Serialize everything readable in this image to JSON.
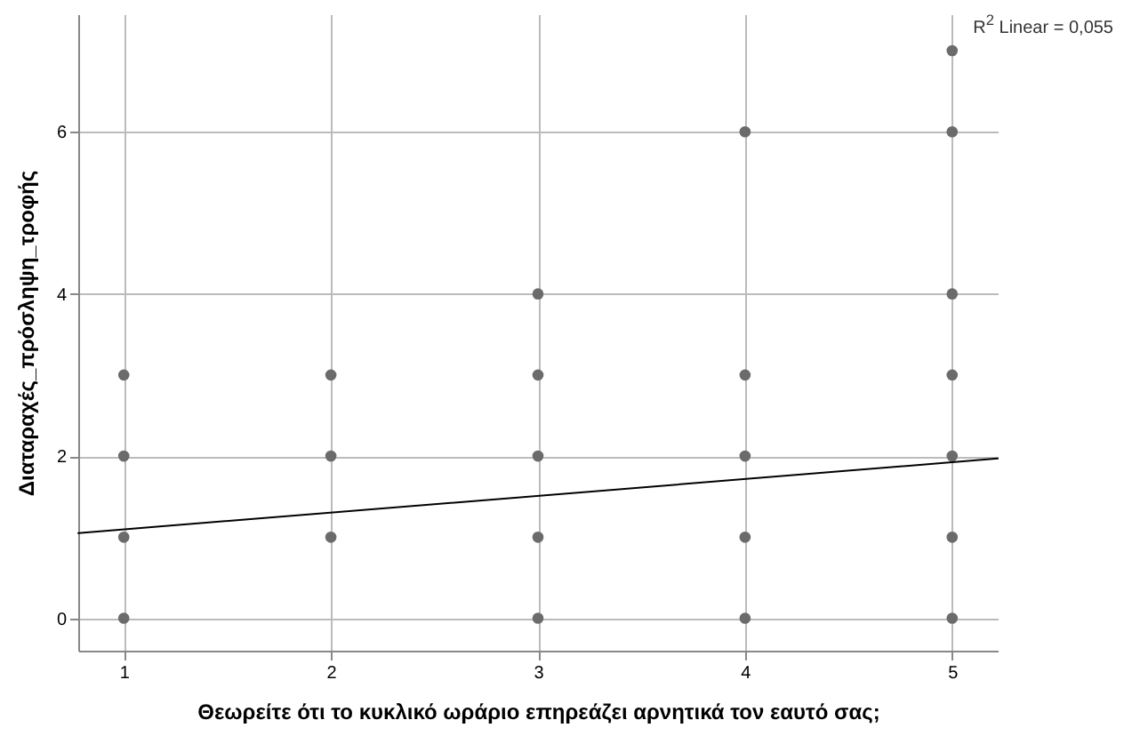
{
  "chart_data": {
    "type": "scatter",
    "xlabel": "Θεωρείτε ότι το κυκλικό ωράριο επηρεάζει αρνητικά τον εαυτό σας;",
    "ylabel": "Διαταραχές_πρόσληψη_τροφής",
    "annotations": [
      "R$^{2}$ Linear = 0,055"
    ],
    "series": [
      {
        "color": "#6b6b6b",
        "x": [
          1,
          1,
          1,
          1,
          2,
          2,
          2,
          3,
          3,
          3,
          3,
          3,
          4,
          4,
          4,
          4,
          4,
          5,
          5,
          5,
          5,
          5,
          5,
          5
        ],
        "values": [
          0,
          1,
          2,
          3,
          1,
          2,
          3,
          0,
          1,
          2,
          3,
          4,
          0,
          1,
          2,
          3,
          6,
          0,
          1,
          2,
          3,
          4,
          6,
          7
        ]
      },
      {
        "type": "line",
        "marker": "none",
        "color": "#000000",
        "x": [
          0.78,
          5.22
        ],
        "values": [
          1.05,
          1.97
        ]
      }
    ],
    "xlim": [
      0.78,
      5.22
    ],
    "xticks": [
      1,
      2,
      3,
      4,
      5
    ],
    "ylim": [
      -0.4,
      7.45
    ],
    "yticks": [
      0,
      2,
      4,
      6
    ],
    "grid": true,
    "marker": "circle"
  }
}
